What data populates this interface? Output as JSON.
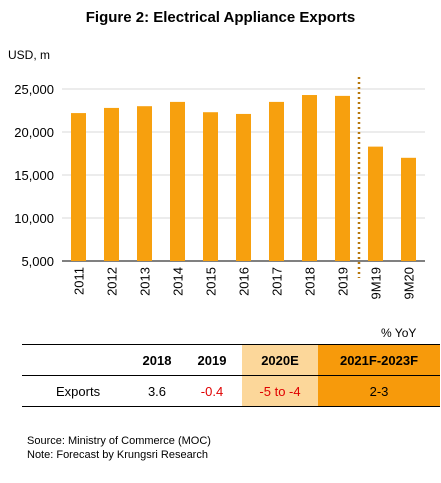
{
  "chart_data": {
    "type": "bar",
    "title": "Figure 2: Electrical Appliance Exports",
    "ylabel": "USD, m",
    "ylim": [
      5000,
      25000
    ],
    "yticks": [
      5000,
      10000,
      15000,
      20000,
      25000
    ],
    "ytick_labels": [
      "5,000",
      "10,000",
      "15,000",
      "20,000",
      "25,000"
    ],
    "categories": [
      "2011",
      "2012",
      "2013",
      "2014",
      "2015",
      "2016",
      "2017",
      "2018",
      "2019",
      "9M19",
      "9M20"
    ],
    "values": [
      22200,
      22800,
      23000,
      23500,
      22300,
      22100,
      23500,
      24300,
      24200,
      18300,
      17000
    ],
    "bar_color": "#f7a00e",
    "divider_color": "#b7770b",
    "grid": true
  },
  "table": {
    "unit_label": "% YoY",
    "headers": [
      "",
      "2018",
      "2019",
      "2020E",
      "2021F-2023F"
    ],
    "rows": [
      {
        "label": "Exports",
        "values": [
          "3.6",
          "-0.4",
          "-5 to -4",
          "2-3"
        ]
      }
    ],
    "highlight_light": "#fcd79a",
    "highlight_dark": "#f79a0b",
    "negative_color": "#e00000"
  },
  "notes": {
    "source": "Source: Ministry of Commerce (MOC)",
    "note": "Note: Forecast by Krungsri Research"
  }
}
